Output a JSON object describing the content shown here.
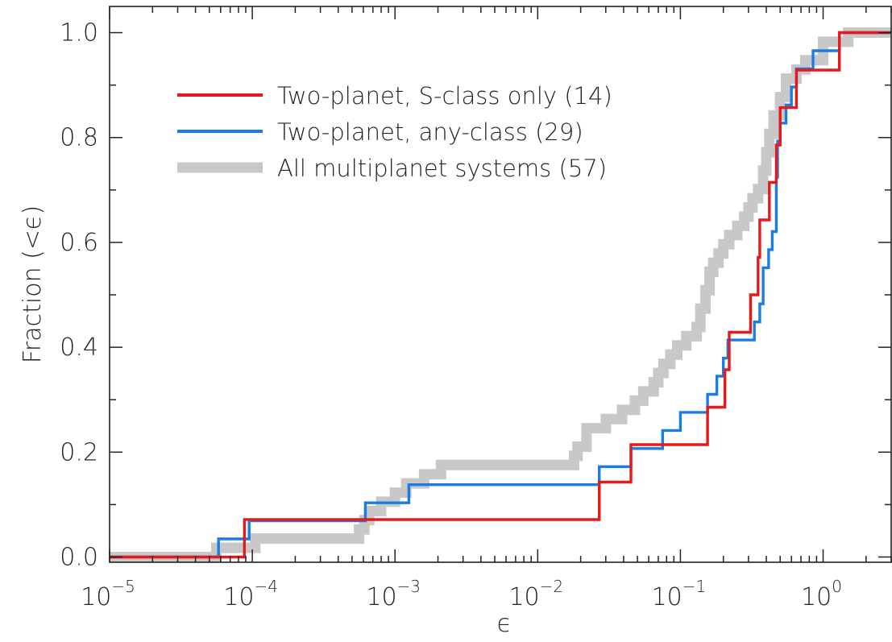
{
  "chart_data": {
    "type": "line",
    "xlabel": "ϵ",
    "ylabel": "Fraction (<ϵ)",
    "x_scale": "log",
    "xlim": [
      1e-05,
      3
    ],
    "ylim": [
      -0.01,
      1.05
    ],
    "x_ticks": [
      {
        "value": 1e-05,
        "base": "10",
        "exp": "−5"
      },
      {
        "value": 0.0001,
        "base": "10",
        "exp": "−4"
      },
      {
        "value": 0.001,
        "base": "10",
        "exp": "−3"
      },
      {
        "value": 0.01,
        "base": "10",
        "exp": "−2"
      },
      {
        "value": 0.1,
        "base": "10",
        "exp": "−1"
      },
      {
        "value": 1,
        "base": "10",
        "exp": "0"
      }
    ],
    "y_ticks": [
      {
        "value": 0.0,
        "label": "0.0"
      },
      {
        "value": 0.2,
        "label": "0.2"
      },
      {
        "value": 0.4,
        "label": "0.4"
      },
      {
        "value": 0.6,
        "label": "0.6"
      },
      {
        "value": 0.8,
        "label": "0.8"
      },
      {
        "value": 1.0,
        "label": "1.0"
      }
    ],
    "grid": false,
    "legend_position": "top-left",
    "series": [
      {
        "name": "All multiplanet systems (57)",
        "color": "#c8c8c8",
        "style": "thick",
        "x": [
          1e-05,
          5.3e-05,
          5.6e-05,
          6.5e-05,
          9.5e-05,
          0.000105,
          0.00011,
          0.00012,
          0.00014,
          0.00052,
          0.00056,
          0.00061,
          0.00066,
          0.0008,
          0.001,
          0.0012,
          0.0016,
          0.0021,
          0.0026,
          0.0035,
          0.018,
          0.019,
          0.022,
          0.03,
          0.039,
          0.048,
          0.055,
          0.065,
          0.07,
          0.076,
          0.085,
          0.095,
          0.11,
          0.13,
          0.138,
          0.15,
          0.16,
          0.17,
          0.185,
          0.2,
          0.22,
          0.25,
          0.28,
          0.3,
          0.32,
          0.35,
          0.38,
          0.4,
          0.42,
          0.45,
          0.5,
          0.55,
          0.65,
          0.75,
          1.0,
          1.5,
          3.0
        ],
        "y": [
          0.0,
          0.0,
          0.0175,
          0.0175,
          0.0175,
          0.0351,
          0.0351,
          0.0351,
          0.0351,
          0.0351,
          0.0526,
          0.0702,
          0.0877,
          0.1053,
          0.1228,
          0.1404,
          0.1579,
          0.1754,
          0.1754,
          0.1754,
          0.193,
          0.2105,
          0.2456,
          0.2632,
          0.2807,
          0.2982,
          0.3158,
          0.3333,
          0.3509,
          0.3684,
          0.386,
          0.4035,
          0.4211,
          0.4386,
          0.4737,
          0.5088,
          0.5439,
          0.5614,
          0.5789,
          0.5965,
          0.614,
          0.6316,
          0.6491,
          0.6667,
          0.6842,
          0.7018,
          0.7368,
          0.7719,
          0.807,
          0.8421,
          0.8772,
          0.9123,
          0.9298,
          0.9474,
          0.9825,
          1.0,
          1.0
        ]
      },
      {
        "name": "Two-planet, any-class (29)",
        "color": "#1a7de6",
        "style": "normal",
        "x": [
          1e-05,
          5.2e-05,
          5.8e-05,
          9.5e-05,
          0.00062,
          0.00125,
          0.027,
          0.045,
          0.075,
          0.1,
          0.155,
          0.18,
          0.2,
          0.215,
          0.33,
          0.36,
          0.38,
          0.415,
          0.44,
          0.47,
          0.48,
          0.5,
          0.55,
          0.6,
          0.65,
          0.85,
          1.3,
          3.0
        ],
        "y": [
          0.0,
          0.0,
          0.0345,
          0.069,
          0.1034,
          0.1379,
          0.1724,
          0.2069,
          0.2414,
          0.2759,
          0.3103,
          0.3448,
          0.3793,
          0.4138,
          0.4483,
          0.4828,
          0.5517,
          0.5862,
          0.6207,
          0.7241,
          0.7931,
          0.8276,
          0.8621,
          0.8966,
          0.931,
          0.9655,
          1.0,
          1.0
        ]
      },
      {
        "name": "Two-planet, S-class only (14)",
        "color": "#e8191a",
        "style": "normal",
        "x": [
          1e-05,
          5.2e-05,
          8.8e-05,
          0.027,
          0.045,
          0.155,
          0.205,
          0.22,
          0.31,
          0.35,
          0.36,
          0.42,
          0.47,
          0.5,
          0.65,
          1.3,
          3.0
        ],
        "y": [
          0.0,
          0.0,
          0.0714,
          0.1429,
          0.2143,
          0.2857,
          0.3571,
          0.4286,
          0.5,
          0.5714,
          0.6429,
          0.7143,
          0.7857,
          0.8571,
          0.9286,
          1.0,
          1.0
        ]
      }
    ]
  }
}
